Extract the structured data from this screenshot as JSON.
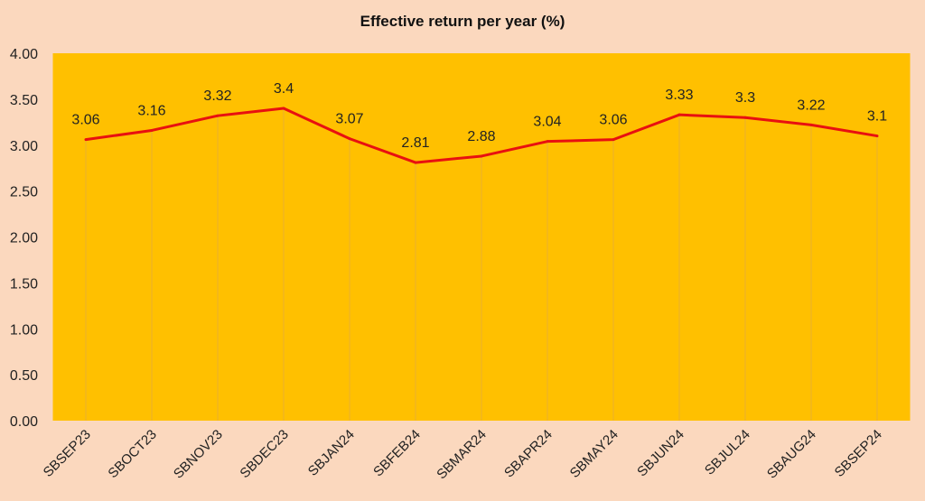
{
  "chart_data": {
    "type": "line",
    "title": "Effective return per year (%)",
    "xlabel": "",
    "ylabel": "",
    "ylim": [
      0,
      4
    ],
    "yticks": [
      "0.00",
      "0.50",
      "1.00",
      "1.50",
      "2.00",
      "2.50",
      "3.00",
      "3.50",
      "4.00"
    ],
    "categories": [
      "SBSEP23",
      "SBOCT23",
      "SBNOV23",
      "SBDEC23",
      "SBJAN24",
      "SBFEB24",
      "SBMAR24",
      "SBAPR24",
      "SBMAY24",
      "SBJUN24",
      "SBJUL24",
      "SBAUG24",
      "SBSEP24"
    ],
    "series": [
      {
        "name": "Effective return per year (%)",
        "values": [
          3.06,
          3.16,
          3.32,
          3.4,
          3.07,
          2.81,
          2.88,
          3.04,
          3.06,
          3.33,
          3.3,
          3.22,
          3.1
        ],
        "labels": [
          "3.06",
          "3.16",
          "3.32",
          "3.4",
          "3.07",
          "2.81",
          "2.88",
          "3.04",
          "3.06",
          "3.33",
          "3.3",
          "3.22",
          "3.1"
        ]
      }
    ],
    "grid": false,
    "drop_lines": true,
    "legend": "none",
    "colors": {
      "background": "#FBD8BE",
      "plot_area": "#FFC000",
      "line": "#E81010"
    }
  }
}
